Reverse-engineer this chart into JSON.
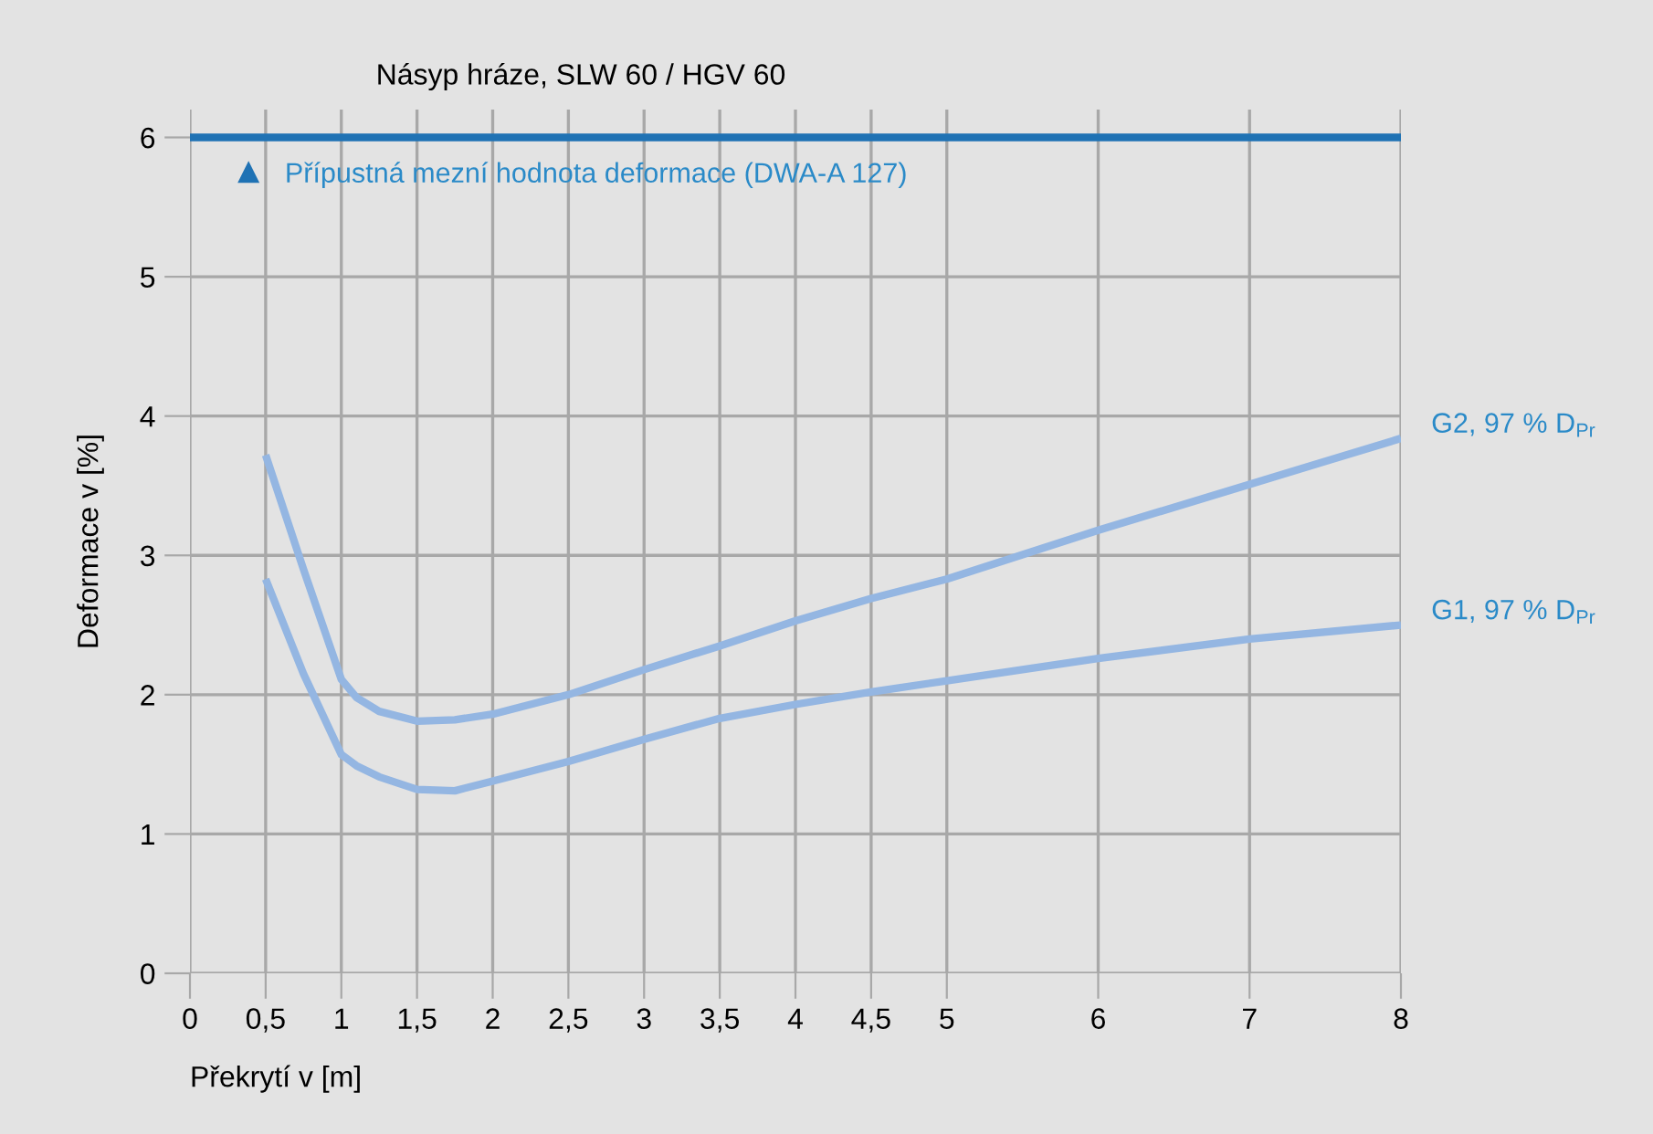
{
  "chart_data": {
    "type": "line",
    "title": "Násyp hráze, SLW 60 / HGV 60",
    "xlabel": "Překrytí v [m]",
    "ylabel": "Deformace v [%]",
    "xlim": [
      0,
      8
    ],
    "ylim": [
      0,
      6.2
    ],
    "xticks": [
      0,
      {
        "value": 0.5,
        "label": "0,5"
      },
      1,
      {
        "value": 1.5,
        "label": "1,5"
      },
      2,
      {
        "value": 2.5,
        "label": "2,5"
      },
      3,
      {
        "value": 3.5,
        "label": "3,5"
      },
      4,
      {
        "value": 4.5,
        "label": "4,5"
      },
      5,
      6,
      7,
      8
    ],
    "yticks": [
      0,
      1,
      2,
      3,
      4,
      5,
      6
    ],
    "grid": true,
    "legend": "top left",
    "marker": "none",
    "line_style": "solid",
    "ref_lines": [
      {
        "axis": "y",
        "value": 6,
        "label": "Přípustná mezní hodnota deformace (DWA-A 127)",
        "color": "#1f72b4"
      }
    ],
    "series": [
      {
        "name": "G2, 97 % D$_{Pr}$",
        "color": "#94b6e2",
        "x": [
          0.5,
          0.75,
          1,
          1.1,
          1.25,
          1.5,
          1.75,
          2,
          2.5,
          3,
          3.5,
          4,
          4.5,
          5,
          6,
          7,
          8
        ],
        "values": [
          3.72,
          2.9,
          2.11,
          1.98,
          1.88,
          1.81,
          1.82,
          1.86,
          2.0,
          2.18,
          2.35,
          2.53,
          2.69,
          2.83,
          3.18,
          3.51,
          3.84
        ]
      },
      {
        "name": "G1, 97 % D$_{Pr}$",
        "color": "#94b6e2",
        "x": [
          0.5,
          0.75,
          1,
          1.1,
          1.25,
          1.5,
          1.75,
          2,
          2.5,
          3,
          3.5,
          4,
          4.5,
          5,
          6,
          7,
          8
        ],
        "values": [
          2.83,
          2.15,
          1.57,
          1.49,
          1.41,
          1.32,
          1.31,
          1.38,
          1.52,
          1.68,
          1.83,
          1.93,
          2.02,
          2.1,
          2.26,
          2.4,
          2.5
        ]
      }
    ]
  }
}
